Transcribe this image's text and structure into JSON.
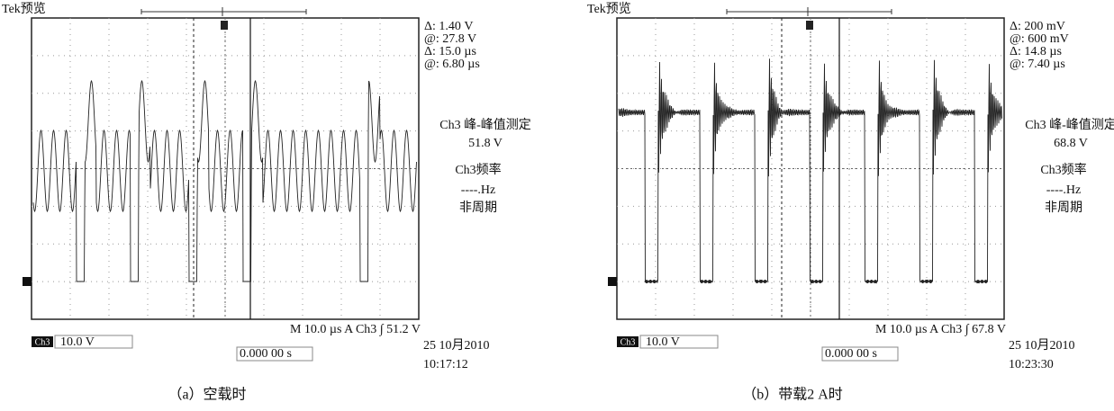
{
  "panels": [
    {
      "brand": "Tek预览",
      "readouts": [
        "Δ:  1.40 V",
        "@:  27.8 V",
        "Δ:  15.0 µs",
        "@:  6.80 µs"
      ],
      "measure": "Ch3 峰-峰值测定",
      "measure_value": "51.8 V",
      "freq_label": "Ch3频率",
      "freq_value": "----.Hz",
      "freq_note": "非周期",
      "channel_badge": "Ch3",
      "channel_scale": "10.0 V",
      "timebase": "M 10.0 µs  A  Ch3 ∫  51.2 V",
      "offset": "0.000 00 s",
      "date": "25 10月2010",
      "time": "10:17:12",
      "caption": "（a）空载时"
    },
    {
      "brand": "Tek预览",
      "readouts": [
        "Δ:  200 mV",
        "@:  600 mV",
        "Δ:  14.8 µs",
        "@:  7.40 µs"
      ],
      "measure": "Ch3 峰-峰值测定",
      "measure_value": "68.8 V",
      "freq_label": "Ch3频率",
      "freq_value": "----.Hz",
      "freq_note": "非周期",
      "channel_badge": "Ch3",
      "channel_scale": "10.0 V",
      "timebase": "M 10.0 µs  A  Ch3 ∫  67.8 V",
      "offset": "0.000 00 s",
      "date": "25 10月2010",
      "time": "10:23:30",
      "caption": "（b）带载2 A时"
    }
  ]
}
